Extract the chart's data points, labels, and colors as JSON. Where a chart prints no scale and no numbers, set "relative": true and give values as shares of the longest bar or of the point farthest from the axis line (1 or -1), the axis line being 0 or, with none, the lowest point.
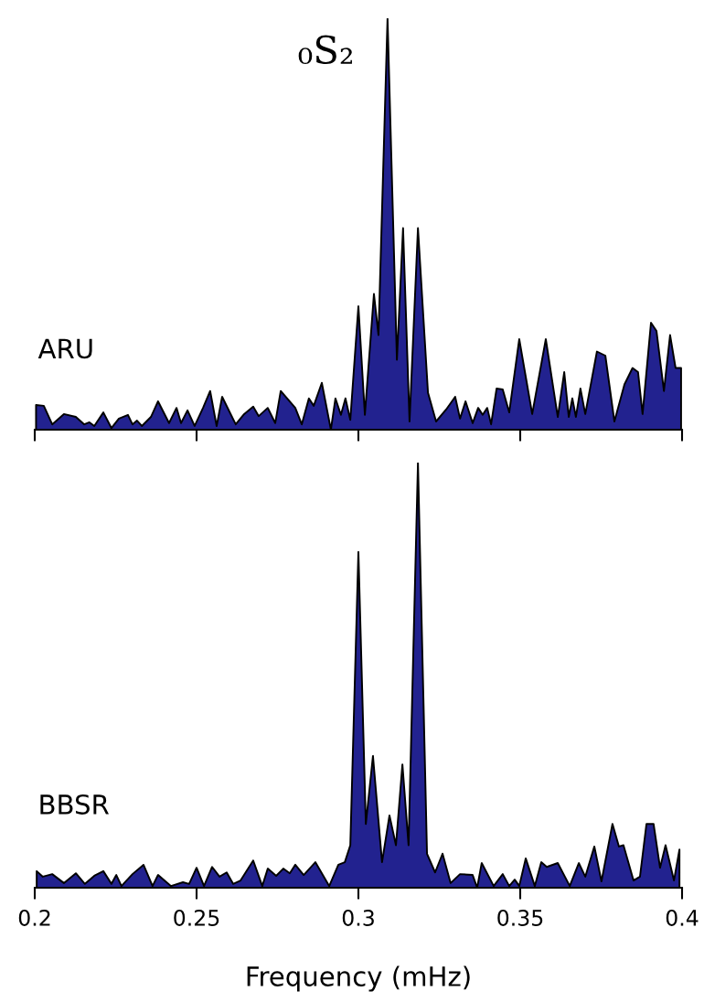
{
  "chart_data": [
    {
      "type": "area",
      "title": "₀S₂",
      "relative": true,
      "xlim": [
        0.2,
        0.4
      ],
      "xticks": [
        0.2,
        0.25,
        0.3,
        0.35,
        0.4
      ],
      "tick_labels": false,
      "grid": false,
      "legend": false,
      "x": [
        0.2004,
        0.2028,
        0.2054,
        0.209,
        0.2127,
        0.2153,
        0.2169,
        0.2184,
        0.2212,
        0.2237,
        0.226,
        0.2288,
        0.2302,
        0.2316,
        0.2331,
        0.2359,
        0.2381,
        0.2415,
        0.2438,
        0.2452,
        0.2472,
        0.2494,
        0.252,
        0.2542,
        0.2562,
        0.2579,
        0.2621,
        0.2647,
        0.2675,
        0.2692,
        0.272,
        0.2743,
        0.276,
        0.2805,
        0.2825,
        0.2847,
        0.2862,
        0.2887,
        0.2915,
        0.2929,
        0.2946,
        0.296,
        0.2975,
        0.3,
        0.302,
        0.3048,
        0.3062,
        0.309,
        0.3119,
        0.3138,
        0.3158,
        0.3184,
        0.3215,
        0.324,
        0.3271,
        0.3299,
        0.3314,
        0.3331,
        0.3353,
        0.337,
        0.3384,
        0.3398,
        0.341,
        0.3427,
        0.3446,
        0.3466,
        0.3497,
        0.3537,
        0.3579,
        0.3616,
        0.3636,
        0.365,
        0.3661,
        0.3672,
        0.3686,
        0.3701,
        0.3737,
        0.3763,
        0.3791,
        0.3822,
        0.3847,
        0.3864,
        0.3878,
        0.3904,
        0.3921,
        0.3944,
        0.3963,
        0.398,
        0.3997
      ],
      "series": [
        {
          "name": "ARU",
          "color": "#22228f",
          "values": [
            0.06,
            0.058,
            0.013,
            0.038,
            0.031,
            0.013,
            0.018,
            0.009,
            0.042,
            0.004,
            0.027,
            0.036,
            0.013,
            0.022,
            0.009,
            0.031,
            0.069,
            0.016,
            0.053,
            0.016,
            0.047,
            0.009,
            0.053,
            0.094,
            0.009,
            0.08,
            0.013,
            0.038,
            0.056,
            0.033,
            0.053,
            0.016,
            0.094,
            0.053,
            0.013,
            0.076,
            0.058,
            0.114,
            0,
            0.076,
            0.036,
            0.076,
            0.024,
            0.3,
            0.036,
            0.33,
            0.23,
            1,
            0.17,
            0.49,
            0.02,
            0.49,
            0.09,
            0.02,
            0.049,
            0.08,
            0.027,
            0.069,
            0.016,
            0.053,
            0.036,
            0.053,
            0.013,
            0.1,
            0.098,
            0.042,
            0.22,
            0.038,
            0.22,
            0.031,
            0.14,
            0.031,
            0.076,
            0.031,
            0.1,
            0.038,
            0.19,
            0.18,
            0.02,
            0.11,
            0.15,
            0.14,
            0.038,
            0.26,
            0.24,
            0.094,
            0.23,
            0.15,
            0.15
          ]
        }
      ]
    },
    {
      "type": "area",
      "xlabel": "Frequency (mHz)",
      "relative": true,
      "xlim": [
        0.2,
        0.4
      ],
      "xticks": [
        0.2,
        0.25,
        0.3,
        0.35,
        0.4
      ],
      "grid": false,
      "legend": false,
      "x": [
        0.2006,
        0.2025,
        0.2054,
        0.209,
        0.2127,
        0.2155,
        0.2184,
        0.2212,
        0.2237,
        0.2252,
        0.2268,
        0.2302,
        0.2336,
        0.2364,
        0.2381,
        0.2421,
        0.2458,
        0.2477,
        0.25,
        0.2523,
        0.2548,
        0.2571,
        0.2593,
        0.2613,
        0.2636,
        0.2675,
        0.2703,
        0.272,
        0.2746,
        0.2768,
        0.2788,
        0.2805,
        0.2831,
        0.2867,
        0.291,
        0.2938,
        0.2958,
        0.2975,
        0.3,
        0.3023,
        0.3045,
        0.3073,
        0.3096,
        0.3116,
        0.3136,
        0.3155,
        0.3184,
        0.3212,
        0.3237,
        0.326,
        0.3285,
        0.3314,
        0.3353,
        0.3367,
        0.3381,
        0.3418,
        0.3446,
        0.3466,
        0.3483,
        0.3497,
        0.3517,
        0.3545,
        0.3565,
        0.3582,
        0.3616,
        0.3653,
        0.3681,
        0.3701,
        0.3729,
        0.3751,
        0.3785,
        0.3805,
        0.3819,
        0.385,
        0.387,
        0.389,
        0.3912,
        0.3932,
        0.3949,
        0.3975,
        0.3992
      ],
      "series": [
        {
          "name": "BBSR",
          "color": "#22228f",
          "values": [
            0.039,
            0.026,
            0.032,
            0.011,
            0.034,
            0.009,
            0.028,
            0.039,
            0.009,
            0.03,
            0.004,
            0.032,
            0.054,
            0.004,
            0.03,
            0.004,
            0.013,
            0.009,
            0.047,
            0.004,
            0.049,
            0.026,
            0.036,
            0.009,
            0.017,
            0.064,
            0.004,
            0.045,
            0.028,
            0.045,
            0.034,
            0.054,
            0.03,
            0.06,
            0.004,
            0.054,
            0.06,
            0.1,
            0.79,
            0.15,
            0.31,
            0.06,
            0.17,
            0.1,
            0.29,
            0.1,
            1,
            0.08,
            0.036,
            0.08,
            0.011,
            0.032,
            0.03,
            0,
            0.058,
            0.004,
            0.032,
            0.004,
            0.019,
            0.004,
            0.069,
            0.004,
            0.06,
            0.049,
            0.058,
            0.004,
            0.058,
            0.026,
            0.097,
            0.015,
            0.15,
            0.097,
            0.1,
            0.017,
            0.026,
            0.15,
            0.15,
            0.047,
            0.1,
            0.017,
            0.09
          ]
        }
      ]
    }
  ]
}
